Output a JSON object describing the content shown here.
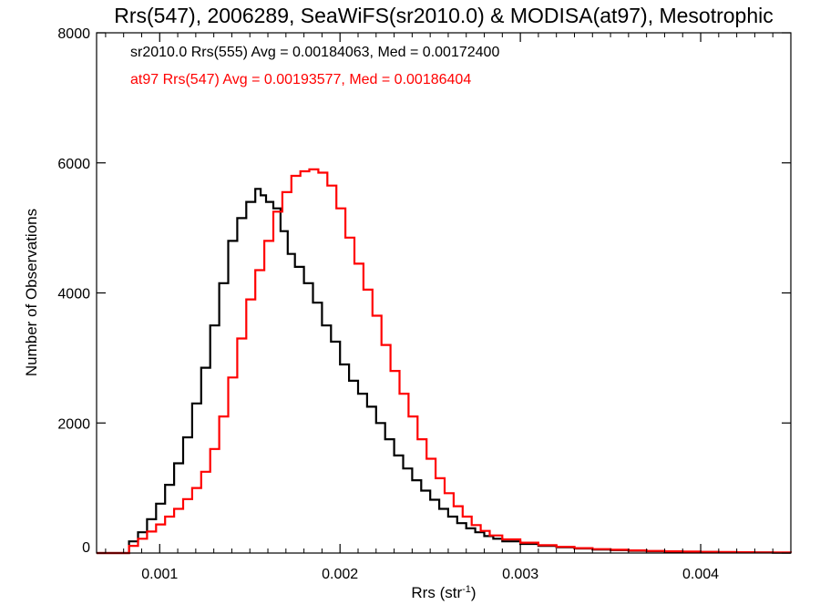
{
  "chart_data": {
    "type": "line",
    "style": "step-histogram",
    "title": "Rrs(547), 2006289, SeaWiFS(sr2010.0) & MODISA(at97), Mesotrophic",
    "xlabel": "Rrs (str",
    "xlabel_sup": "-1",
    "xlabel_suffix": ")",
    "ylabel": "Number of Observations",
    "xlim": [
      0.00065,
      0.0045
    ],
    "ylim": [
      0,
      8000
    ],
    "x_ticks": [
      0.001,
      0.002,
      0.003,
      0.004
    ],
    "x_tick_labels": [
      "0.001",
      "0.002",
      "0.003",
      "0.004"
    ],
    "y_ticks": [
      0,
      2000,
      4000,
      6000,
      8000
    ],
    "y_tick_labels": [
      "0",
      "2000",
      "4000",
      "6000",
      "8000"
    ],
    "grid": false,
    "annotations": [
      {
        "text": "sr2010.0 Rrs(555) Avg = 0.00184063, Med = 0.00172400",
        "color": "#000000"
      },
      {
        "text": "at97 Rrs(547) Avg = 0.00193577, Med = 0.00186404",
        "color": "#ff0000"
      }
    ],
    "series": [
      {
        "color": "#000000",
        "points": [
          [
            0.00065,
            0
          ],
          [
            0.0008,
            0
          ],
          [
            0.00083,
            180
          ],
          [
            0.00088,
            320
          ],
          [
            0.00093,
            520
          ],
          [
            0.00098,
            760
          ],
          [
            0.00103,
            1050
          ],
          [
            0.00108,
            1380
          ],
          [
            0.00113,
            1780
          ],
          [
            0.00118,
            2300
          ],
          [
            0.00123,
            2850
          ],
          [
            0.00128,
            3500
          ],
          [
            0.00133,
            4150
          ],
          [
            0.00138,
            4800
          ],
          [
            0.00143,
            5150
          ],
          [
            0.00148,
            5400
          ],
          [
            0.00153,
            5600
          ],
          [
            0.00156,
            5500
          ],
          [
            0.00159,
            5400
          ],
          [
            0.00163,
            5300
          ],
          [
            0.00167,
            4950
          ],
          [
            0.00171,
            4600
          ],
          [
            0.00175,
            4400
          ],
          [
            0.0018,
            4150
          ],
          [
            0.00185,
            3850
          ],
          [
            0.0019,
            3500
          ],
          [
            0.00195,
            3250
          ],
          [
            0.002,
            2900
          ],
          [
            0.00205,
            2650
          ],
          [
            0.0021,
            2450
          ],
          [
            0.00215,
            2250
          ],
          [
            0.0022,
            2000
          ],
          [
            0.00225,
            1750
          ],
          [
            0.0023,
            1500
          ],
          [
            0.00235,
            1300
          ],
          [
            0.0024,
            1120
          ],
          [
            0.00245,
            960
          ],
          [
            0.0025,
            820
          ],
          [
            0.00255,
            680
          ],
          [
            0.0026,
            560
          ],
          [
            0.00265,
            460
          ],
          [
            0.0027,
            380
          ],
          [
            0.00275,
            320
          ],
          [
            0.0028,
            260
          ],
          [
            0.00285,
            220
          ],
          [
            0.0029,
            180
          ],
          [
            0.003,
            140
          ],
          [
            0.0031,
            110
          ],
          [
            0.0032,
            90
          ],
          [
            0.0033,
            70
          ],
          [
            0.0034,
            55
          ],
          [
            0.0035,
            45
          ],
          [
            0.0036,
            35
          ],
          [
            0.0037,
            28
          ],
          [
            0.0038,
            22
          ],
          [
            0.0039,
            18
          ],
          [
            0.004,
            15
          ],
          [
            0.0041,
            12
          ],
          [
            0.0042,
            10
          ],
          [
            0.0043,
            8
          ],
          [
            0.0044,
            6
          ],
          [
            0.0045,
            5
          ]
        ]
      },
      {
        "color": "#ff0000",
        "points": [
          [
            0.00065,
            0
          ],
          [
            0.0008,
            0
          ],
          [
            0.00083,
            110
          ],
          [
            0.00088,
            220
          ],
          [
            0.00093,
            330
          ],
          [
            0.00098,
            440
          ],
          [
            0.00103,
            560
          ],
          [
            0.00108,
            680
          ],
          [
            0.00113,
            830
          ],
          [
            0.00118,
            1000
          ],
          [
            0.00123,
            1250
          ],
          [
            0.00128,
            1600
          ],
          [
            0.00133,
            2100
          ],
          [
            0.00138,
            2700
          ],
          [
            0.00143,
            3300
          ],
          [
            0.00148,
            3900
          ],
          [
            0.00153,
            4350
          ],
          [
            0.00158,
            4800
          ],
          [
            0.00163,
            5250
          ],
          [
            0.00168,
            5550
          ],
          [
            0.00173,
            5800
          ],
          [
            0.00178,
            5870
          ],
          [
            0.00183,
            5900
          ],
          [
            0.00188,
            5850
          ],
          [
            0.00193,
            5650
          ],
          [
            0.00198,
            5300
          ],
          [
            0.00203,
            4850
          ],
          [
            0.00208,
            4450
          ],
          [
            0.00213,
            4050
          ],
          [
            0.00218,
            3650
          ],
          [
            0.00223,
            3200
          ],
          [
            0.00228,
            2800
          ],
          [
            0.00233,
            2450
          ],
          [
            0.00238,
            2100
          ],
          [
            0.00243,
            1750
          ],
          [
            0.00248,
            1450
          ],
          [
            0.00253,
            1150
          ],
          [
            0.00258,
            920
          ],
          [
            0.00263,
            720
          ],
          [
            0.00268,
            560
          ],
          [
            0.00273,
            430
          ],
          [
            0.00278,
            340
          ],
          [
            0.00283,
            270
          ],
          [
            0.0029,
            210
          ],
          [
            0.003,
            160
          ],
          [
            0.0031,
            120
          ],
          [
            0.0032,
            95
          ],
          [
            0.0033,
            75
          ],
          [
            0.0034,
            60
          ],
          [
            0.0035,
            50
          ],
          [
            0.0036,
            40
          ],
          [
            0.0037,
            32
          ],
          [
            0.0038,
            26
          ],
          [
            0.0039,
            22
          ],
          [
            0.004,
            18
          ],
          [
            0.0041,
            15
          ],
          [
            0.0042,
            12
          ],
          [
            0.0043,
            10
          ],
          [
            0.0044,
            8
          ],
          [
            0.0045,
            6
          ]
        ]
      }
    ]
  }
}
